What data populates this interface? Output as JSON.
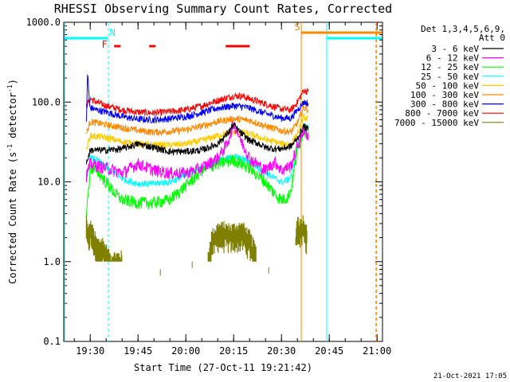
{
  "chart_data": {
    "type": "line",
    "title": "RHESSI Observing Summary Count Rates, Corrected",
    "xlabel": "Start Time (27-Oct-11 19:21:42)",
    "ylabel": "Corrected Count Rate (s",
    "ylabel_sup": "-1",
    "ylabel_mid": " detector",
    "ylabel_end": ")",
    "x_scale": "time (minutes after 19:00)",
    "xlim": [
      21.7,
      121.7
    ],
    "y_scale": "log",
    "ylim": [
      0.1,
      1000
    ],
    "x_ticks": [
      {
        "x": 30,
        "label": "19:30"
      },
      {
        "x": 45,
        "label": "19:45"
      },
      {
        "x": 60,
        "label": "20:00"
      },
      {
        "x": 75,
        "label": "20:15"
      },
      {
        "x": 90,
        "label": "20:30"
      },
      {
        "x": 105,
        "label": "20:45"
      },
      {
        "x": 120,
        "label": "21:00"
      }
    ],
    "y_ticks": [
      {
        "y": 0.1,
        "label": "0.1"
      },
      {
        "y": 1,
        "label": "1.0"
      },
      {
        "y": 10,
        "label": "10.0"
      },
      {
        "y": 100,
        "label": "100.0"
      },
      {
        "y": 1000,
        "label": "1000.0"
      }
    ],
    "legend_header": [
      "Det 1,3,4,5,6,9,",
      "Att 0"
    ],
    "series": [
      {
        "name": "3 - 6 keV",
        "color": "#000000",
        "x": [
          28.8,
          30,
          35,
          40,
          45,
          50,
          55,
          60,
          65,
          70,
          73,
          75,
          77,
          80,
          83,
          85,
          88,
          90,
          93,
          95,
          97,
          98.5
        ],
        "y": [
          17,
          25,
          25,
          26,
          30,
          27,
          24,
          24,
          25,
          30,
          40,
          52,
          42,
          33,
          30,
          27,
          26,
          26,
          28,
          35,
          50,
          45
        ]
      },
      {
        "name": "6 - 12 keV",
        "color": "#ff00ff",
        "x": [
          28.8,
          30,
          35,
          40,
          45,
          50,
          55,
          60,
          65,
          70,
          73,
          75,
          77,
          80,
          83,
          85,
          88,
          90,
          93,
          95,
          97,
          98.5
        ],
        "y": [
          12,
          17,
          15,
          13,
          17,
          14,
          13,
          13,
          15,
          20,
          30,
          55,
          35,
          20,
          16,
          14,
          18,
          14,
          16,
          28,
          45,
          38
        ]
      },
      {
        "name": "12 - 25 keV",
        "color": "#00ff00",
        "x": [
          28.8,
          29.5,
          30,
          32,
          35,
          38,
          40,
          45,
          50,
          55,
          60,
          65,
          70,
          75,
          80,
          85,
          88,
          90,
          92,
          93,
          95,
          97,
          98.5
        ],
        "y": [
          4,
          8,
          15,
          14,
          10,
          7,
          6,
          5.5,
          5.5,
          6,
          9,
          14,
          17,
          19,
          15,
          10,
          7,
          6,
          6.5,
          8,
          25,
          45,
          40
        ]
      },
      {
        "name": "25 - 50 keV",
        "color": "#00ffff",
        "x": [
          28.8,
          30,
          32,
          35,
          40,
          45,
          50,
          55,
          60,
          65,
          70,
          75,
          80,
          85,
          88,
          90,
          92,
          93,
          95,
          97,
          98.5
        ],
        "y": [
          10,
          20,
          19,
          15,
          11,
          9.5,
          9.5,
          10,
          12,
          15,
          18,
          21,
          18,
          13,
          11,
          10,
          10.5,
          12,
          28,
          50,
          48
        ]
      },
      {
        "name": "50 - 100 keV",
        "color": "#ffcc00",
        "x": [
          28.8,
          30,
          35,
          40,
          45,
          50,
          55,
          60,
          65,
          70,
          75,
          80,
          85,
          90,
          93,
          95,
          97,
          98.5
        ],
        "y": [
          25,
          38,
          36,
          32,
          30,
          29,
          29,
          30,
          33,
          38,
          42,
          40,
          34,
          30,
          30,
          40,
          65,
          62
        ]
      },
      {
        "name": "100 - 300 keV",
        "color": "#ff8800",
        "x": [
          28.8,
          30,
          35,
          40,
          45,
          50,
          55,
          60,
          65,
          70,
          75,
          80,
          85,
          90,
          93,
          95,
          97,
          98.5
        ],
        "y": [
          40,
          57,
          52,
          48,
          44,
          42,
          43,
          45,
          50,
          57,
          62,
          59,
          50,
          44,
          42,
          55,
          85,
          80
        ]
      },
      {
        "name": "300 - 800 keV",
        "color": "#0000ff",
        "x": [
          28.8,
          29.2,
          29.8,
          30,
          32,
          35,
          40,
          45,
          50,
          55,
          60,
          65,
          70,
          75,
          78,
          80,
          85,
          90,
          93,
          95,
          97,
          98.5
        ],
        "y": [
          60,
          240,
          90,
          85,
          80,
          75,
          66,
          61,
          60,
          62,
          66,
          74,
          84,
          90,
          88,
          84,
          72,
          63,
          63,
          80,
          100,
          95
        ]
      },
      {
        "name": "800 - 7000 keV",
        "color": "#ff0000",
        "x": [
          28.8,
          30,
          32,
          35,
          40,
          45,
          50,
          55,
          60,
          65,
          70,
          75,
          78,
          80,
          85,
          90,
          93,
          95,
          97,
          98.5
        ],
        "y": [
          90,
          110,
          100,
          90,
          80,
          75,
          73,
          76,
          80,
          90,
          105,
          120,
          118,
          110,
          95,
          82,
          80,
          100,
          140,
          135
        ]
      },
      {
        "name": "7000 - 15000 keV",
        "color": "#808000",
        "x": [
          28.8,
          29.3,
          30,
          31,
          32,
          34,
          36,
          38,
          40
        ],
        "y": [
          3,
          2,
          2.5,
          2,
          1.5,
          1.5,
          1.0,
          1.0,
          1.0
        ],
        "x2": [
          67,
          68,
          70,
          72,
          74,
          76,
          78,
          80,
          82
        ],
        "y2": [
          1.0,
          1.8,
          2.3,
          2.3,
          2.2,
          2.3,
          2.3,
          1.8,
          1.2
        ],
        "x3": [
          94.5,
          95,
          96,
          97,
          98
        ],
        "y3": [
          2.0,
          3.0,
          2.5,
          3.0,
          2.0
        ]
      }
    ],
    "flag_bars": [
      {
        "label": "N",
        "color": "#00ffff",
        "intervals": [
          [
            22,
            35.5
          ],
          [
            104.3,
            121.5
          ]
        ],
        "label_x": 37.0
      },
      {
        "label": "F",
        "color": "#ff0000",
        "intervals": [
          [
            37.5,
            39.5
          ],
          [
            48.5,
            50.5
          ],
          [
            72.5,
            80
          ]
        ],
        "label_x": 34.5
      },
      {
        "label": "S",
        "color": "#ff8800",
        "intervals": [
          [
            96.3,
            121.5
          ]
        ],
        "label_x": 95.0
      }
    ],
    "vertical_markers": [
      {
        "x": 22.0,
        "color": "#00ffff",
        "style": "solid"
      },
      {
        "x": 35.7,
        "color": "#00ffff",
        "style": "dash"
      },
      {
        "x": 96.2,
        "color": "#ff8800",
        "style": "solid"
      },
      {
        "x": 104.2,
        "color": "#00ffff",
        "style": "solid"
      },
      {
        "x": 119.6,
        "color": "#00ffff",
        "style": "dash"
      },
      {
        "x": 119.8,
        "color": "#ff8800",
        "style": "dash"
      }
    ],
    "timestamp": "21-Oct-2021 17:05"
  }
}
